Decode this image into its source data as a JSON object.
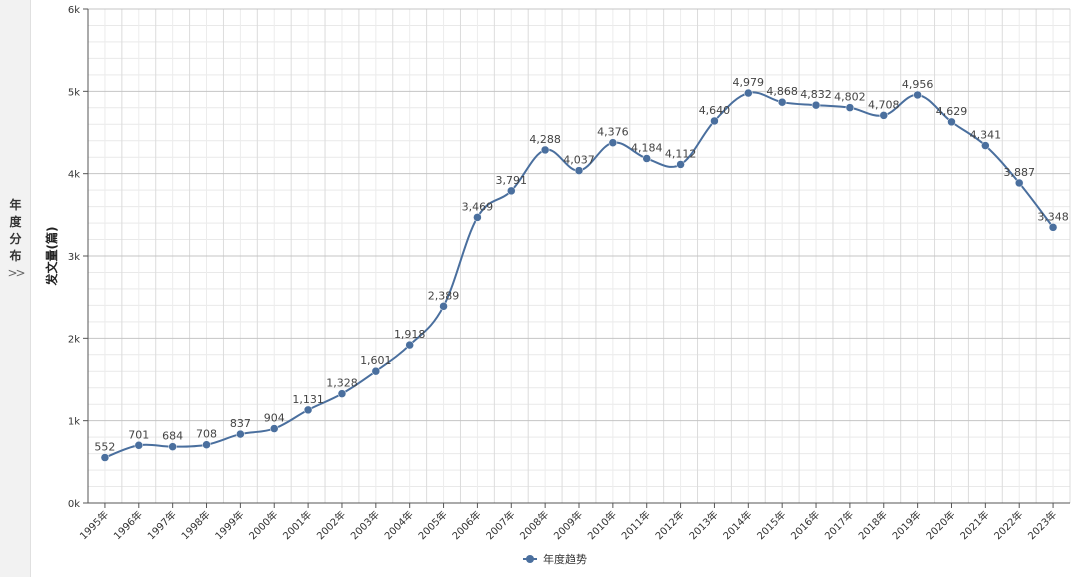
{
  "sidebar": {
    "label": "年\n度\n分\n布",
    "chevron_icon": "double-chevron-right-icon"
  },
  "chart_data": {
    "type": "line",
    "title": "",
    "xlabel": "",
    "ylabel": "发文量(篇)",
    "ylim": [
      0,
      6000
    ],
    "yticks": [
      "0k",
      "1k",
      "2k",
      "3k",
      "4k",
      "5k",
      "6k"
    ],
    "categories": [
      "1995年",
      "1996年",
      "1997年",
      "1998年",
      "1999年",
      "2000年",
      "2001年",
      "2002年",
      "2003年",
      "2004年",
      "2005年",
      "2006年",
      "2007年",
      "2008年",
      "2009年",
      "2010年",
      "2011年",
      "2012年",
      "2013年",
      "2014年",
      "2015年",
      "2016年",
      "2017年",
      "2018年",
      "2019年",
      "2020年",
      "2021年",
      "2022年",
      "2023年"
    ],
    "series": [
      {
        "name": "年度趋势",
        "color": "#4a6f9e",
        "values": [
          552,
          701,
          684,
          708,
          837,
          904,
          1131,
          1328,
          1601,
          1918,
          2389,
          3469,
          3791,
          4288,
          4037,
          4376,
          4184,
          4112,
          4640,
          4979,
          4868,
          4832,
          4802,
          4708,
          4956,
          4629,
          4341,
          3887,
          3348
        ],
        "labels": [
          "552",
          "701",
          "684",
          "708",
          "837",
          "904",
          "1,131",
          "1,328",
          "1,601",
          "1,918",
          "2,389",
          "3,469",
          "3,791",
          "4,288",
          "4,037",
          "4,376",
          "4,184",
          "4,112",
          "4,640",
          "4,979",
          "4,868",
          "4,832",
          "4,802",
          "4,708",
          "4,956",
          "4,629",
          "4,341",
          "3,887",
          "3,348"
        ]
      }
    ],
    "grid": true,
    "legend": "bottom-center"
  }
}
